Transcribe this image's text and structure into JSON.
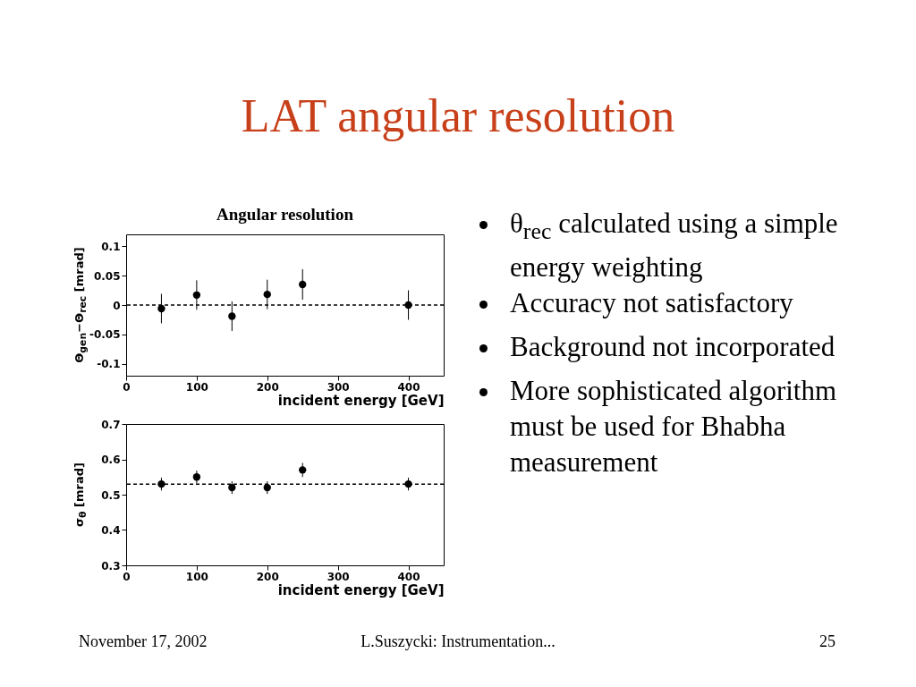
{
  "chart_data": [
    {
      "type": "scatter",
      "title": "Angular resolution",
      "xlabel": "incident energy [GeV]",
      "ylabel": "Θ$_{gen}$−Θ$_{rec}$ [mrad]",
      "x": [
        50,
        100,
        150,
        200,
        250,
        400
      ],
      "series": [
        {
          "color": "#000000",
          "values": [
            -0.006,
            0.017,
            -0.019,
            0.018,
            0.035,
            0
          ],
          "errors": [
            0.025,
            0.025,
            0.025,
            0.025,
            0.026,
            0.025
          ]
        }
      ],
      "xlim": [
        0,
        450
      ],
      "xticks": [
        0,
        100,
        200,
        300,
        400
      ],
      "ylim": [
        -0.12,
        0.12
      ],
      "yticks": [
        -0.1,
        -0.05,
        0,
        0.05,
        0.1
      ],
      "ref_lines": [
        {
          "axis": "y",
          "value": 0,
          "color": "#000000",
          "line_style": "dashed"
        }
      ],
      "marker": "circle",
      "grid": false,
      "legend": false
    },
    {
      "type": "scatter",
      "xlabel": "incident energy [GeV]",
      "ylabel": "σ$_{θ}$ [mrad]",
      "x": [
        50,
        100,
        150,
        200,
        250,
        400
      ],
      "series": [
        {
          "color": "#000000",
          "values": [
            0.53,
            0.55,
            0.52,
            0.52,
            0.57,
            0.53
          ],
          "errors": [
            0.018,
            0.018,
            0.018,
            0.018,
            0.02,
            0.018
          ]
        }
      ],
      "xlim": [
        0,
        450
      ],
      "xticks": [
        0,
        100,
        200,
        300,
        400
      ],
      "ylim": [
        0.3,
        0.7
      ],
      "yticks": [
        0.3,
        0.4,
        0.5,
        0.6,
        0.7
      ],
      "ref_lines": [
        {
          "axis": "y",
          "value": 0.53,
          "color": "#000000",
          "line_style": "dashed"
        }
      ],
      "marker": "circle",
      "grid": false,
      "legend": false
    },
    {
      "type": "other",
      "title": "LAT angular resolution",
      "annotations": [
        "θ$_{rec}$ calculated using a simple energy weighting",
        "Accuracy not satisfactory",
        "Background not incorporated",
        "More sophisticated algorithm must be used for Bhabha measurement"
      ]
    },
    {
      "type": "other",
      "annotations": [
        "November 17, 2002",
        "L.Suszycki: Instrumentation...",
        "25"
      ]
    }
  ]
}
